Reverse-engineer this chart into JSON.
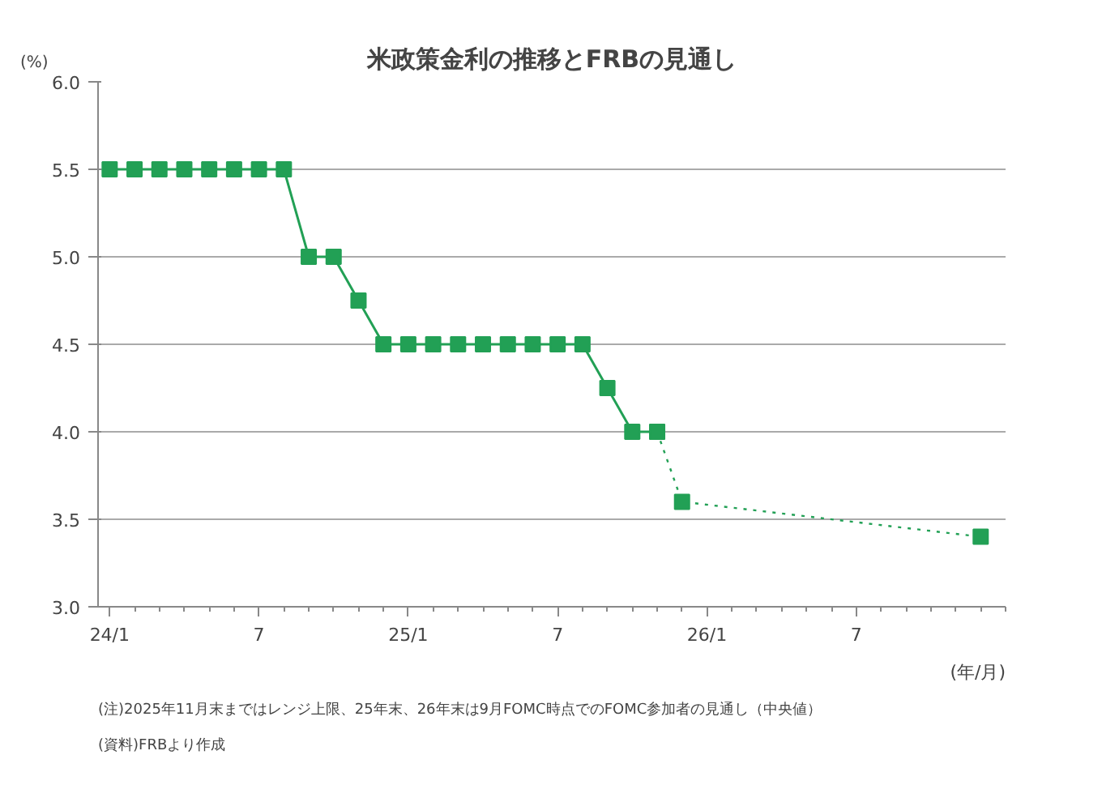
{
  "chart_data": {
    "type": "line",
    "title": "米政策金利の推移とFRBの見通し",
    "ylabel": "(%)",
    "xlabel": "(年/月)",
    "annotations": [
      "(注)2025年11月末まではレンジ上限、25年末、26年末は9月FOMC時点でのFOMC参加者の見通し（中央値）",
      "(資料)FRBより作成"
    ],
    "xlim": [
      "2023-12-17",
      "2027-01-01"
    ],
    "xticks": [
      {
        "value": "2024-01",
        "label": "24/1"
      },
      {
        "value": "2024-07",
        "label": "7"
      },
      {
        "value": "2025-01",
        "label": "25/1"
      },
      {
        "value": "2025-07",
        "label": "7"
      },
      {
        "value": "2026-01",
        "label": "26/1"
      },
      {
        "value": "2026-07",
        "label": "7"
      }
    ],
    "ylim": [
      3.0,
      6.0
    ],
    "yticks": [
      {
        "value": 3.0,
        "label": "3.0"
      },
      {
        "value": 3.5,
        "label": "3.5"
      },
      {
        "value": 4.0,
        "label": "4.0"
      },
      {
        "value": 4.5,
        "label": "4.5"
      },
      {
        "value": 5.0,
        "label": "5.0"
      },
      {
        "value": 5.5,
        "label": "5.5"
      },
      {
        "value": 6.0,
        "label": "6.0"
      }
    ],
    "grid": "y",
    "marker": "square",
    "series": [
      {
        "color": "#22a055",
        "line_style": "solid",
        "x": [
          "2024-01",
          "2024-02",
          "2024-03",
          "2024-04",
          "2024-05",
          "2024-06",
          "2024-07",
          "2024-08",
          "2024-09",
          "2024-10",
          "2024-11",
          "2024-12",
          "2025-01",
          "2025-02",
          "2025-03",
          "2025-04",
          "2025-05",
          "2025-06",
          "2025-07",
          "2025-08",
          "2025-09",
          "2025-10",
          "2025-11"
        ],
        "values": [
          5.5,
          5.5,
          5.5,
          5.5,
          5.5,
          5.5,
          5.5,
          5.5,
          5.0,
          5.0,
          4.75,
          4.5,
          4.5,
          4.5,
          4.5,
          4.5,
          4.5,
          4.5,
          4.5,
          4.5,
          4.25,
          4.0,
          4.0
        ]
      },
      {
        "color": "#22a055",
        "line_style": "dotted",
        "x": [
          "2025-11",
          "2025-12",
          "2026-12"
        ],
        "values": [
          4.0,
          3.6,
          3.4
        ]
      }
    ]
  }
}
